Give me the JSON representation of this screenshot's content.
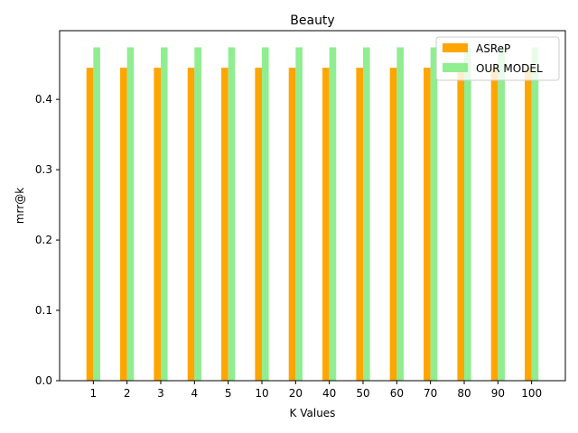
{
  "chart_data": {
    "type": "bar",
    "title": "Beauty",
    "xlabel": "K Values",
    "ylabel": "mrr@k",
    "categories": [
      "1",
      "2",
      "3",
      "4",
      "5",
      "10",
      "20",
      "40",
      "50",
      "60",
      "70",
      "80",
      "90",
      "100"
    ],
    "series": [
      {
        "name": "ASReP",
        "color": "#ffa500",
        "values": [
          0.445,
          0.445,
          0.445,
          0.445,
          0.445,
          0.445,
          0.445,
          0.445,
          0.445,
          0.445,
          0.445,
          0.445,
          0.445,
          0.445
        ]
      },
      {
        "name": "OUR MODEL",
        "color": "#90ee90",
        "values": [
          0.474,
          0.474,
          0.474,
          0.474,
          0.474,
          0.474,
          0.474,
          0.474,
          0.474,
          0.474,
          0.474,
          0.474,
          0.474,
          0.474
        ]
      }
    ],
    "ylim": [
      0,
      0.4977
    ],
    "yticks": [
      "0.0",
      "0.1",
      "0.2",
      "0.3",
      "0.4"
    ],
    "grid": false,
    "legend_position": "top-right"
  }
}
